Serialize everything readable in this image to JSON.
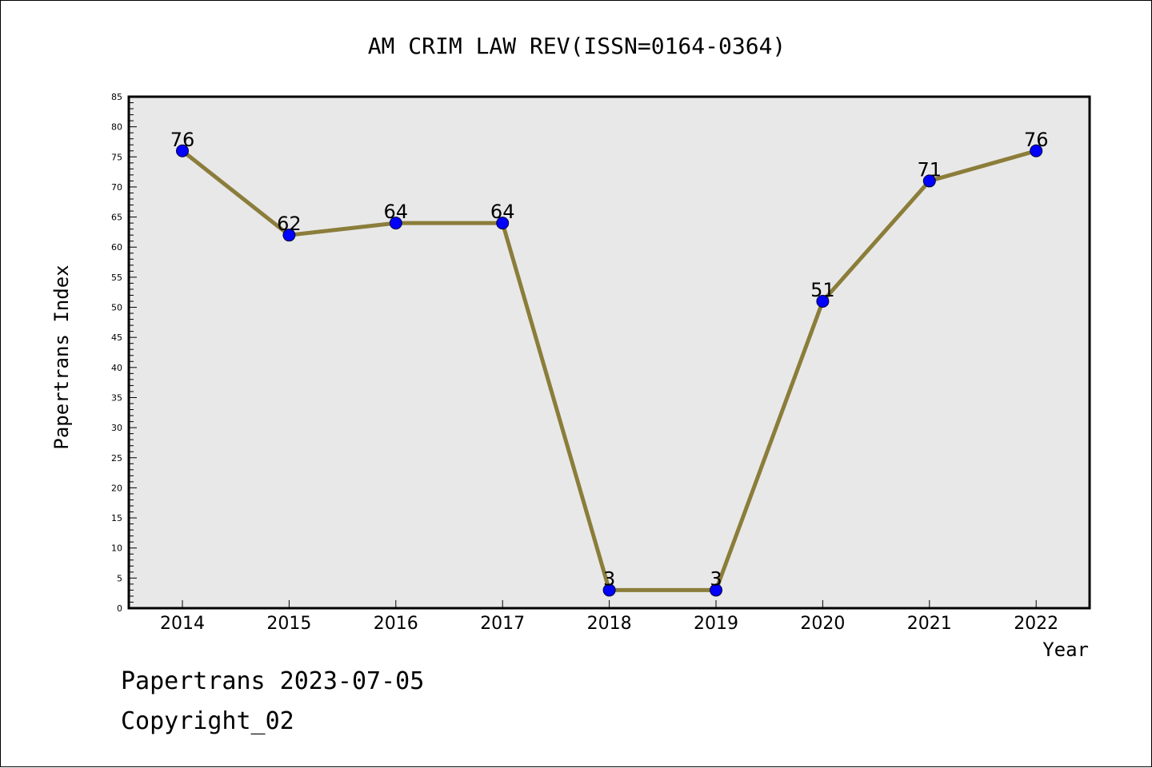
{
  "chart_data": {
    "type": "line",
    "title": "AM CRIM LAW REV(ISSN=0164-0364)",
    "xlabel": "Year",
    "ylabel": "Papertrans Index",
    "categories": [
      "2014",
      "2015",
      "2016",
      "2017",
      "2018",
      "2019",
      "2020",
      "2021",
      "2022"
    ],
    "series": [
      {
        "values": [
          76,
          62,
          64,
          64,
          3,
          3,
          51,
          71,
          76
        ]
      }
    ],
    "ylim": [
      0,
      85
    ],
    "yticks": [
      0,
      5,
      10,
      15,
      20,
      25,
      30,
      35,
      40,
      45,
      50,
      55,
      60,
      65,
      70,
      75,
      80,
      85
    ],
    "grid": false,
    "plot_background": "#e8e8e8",
    "line_color": "#8b7d3a",
    "marker_color": "#0000ff",
    "data_labels": true
  },
  "footer": {
    "line1": "Papertrans 2023-07-05",
    "line2": "Copyright_02"
  }
}
